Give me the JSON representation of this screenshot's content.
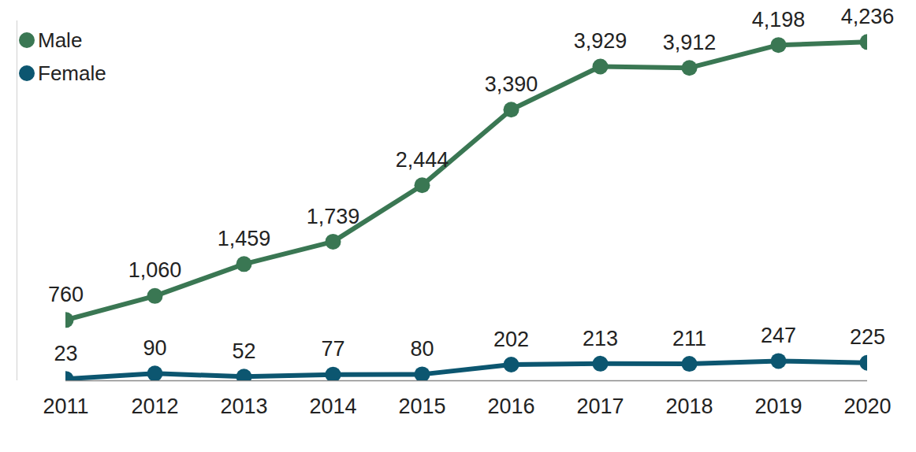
{
  "chart_data": {
    "type": "line",
    "categories": [
      "2011",
      "2012",
      "2013",
      "2014",
      "2015",
      "2016",
      "2017",
      "2018",
      "2019",
      "2020"
    ],
    "series": [
      {
        "name": "Male",
        "color": "#3a7753",
        "marker": "circle",
        "values": [
          760,
          1060,
          1459,
          1739,
          2444,
          3390,
          3929,
          3912,
          4198,
          4236
        ],
        "value_labels": [
          "760",
          "1,060",
          "1,459",
          "1,739",
          "2,444",
          "3,390",
          "3,929",
          "3,912",
          "4,198",
          "4,236"
        ]
      },
      {
        "name": "Female",
        "color": "#0c5670",
        "marker": "circle",
        "values": [
          23,
          90,
          52,
          77,
          80,
          202,
          213,
          211,
          247,
          225
        ],
        "value_labels": [
          "23",
          "90",
          "52",
          "77",
          "80",
          "202",
          "213",
          "211",
          "247",
          "225"
        ]
      }
    ],
    "ylim": [
      0,
      4500
    ],
    "yticks": [
      0
    ],
    "grid": false,
    "legend": "top-left",
    "data_labels": true,
    "tick_labels": "x"
  }
}
